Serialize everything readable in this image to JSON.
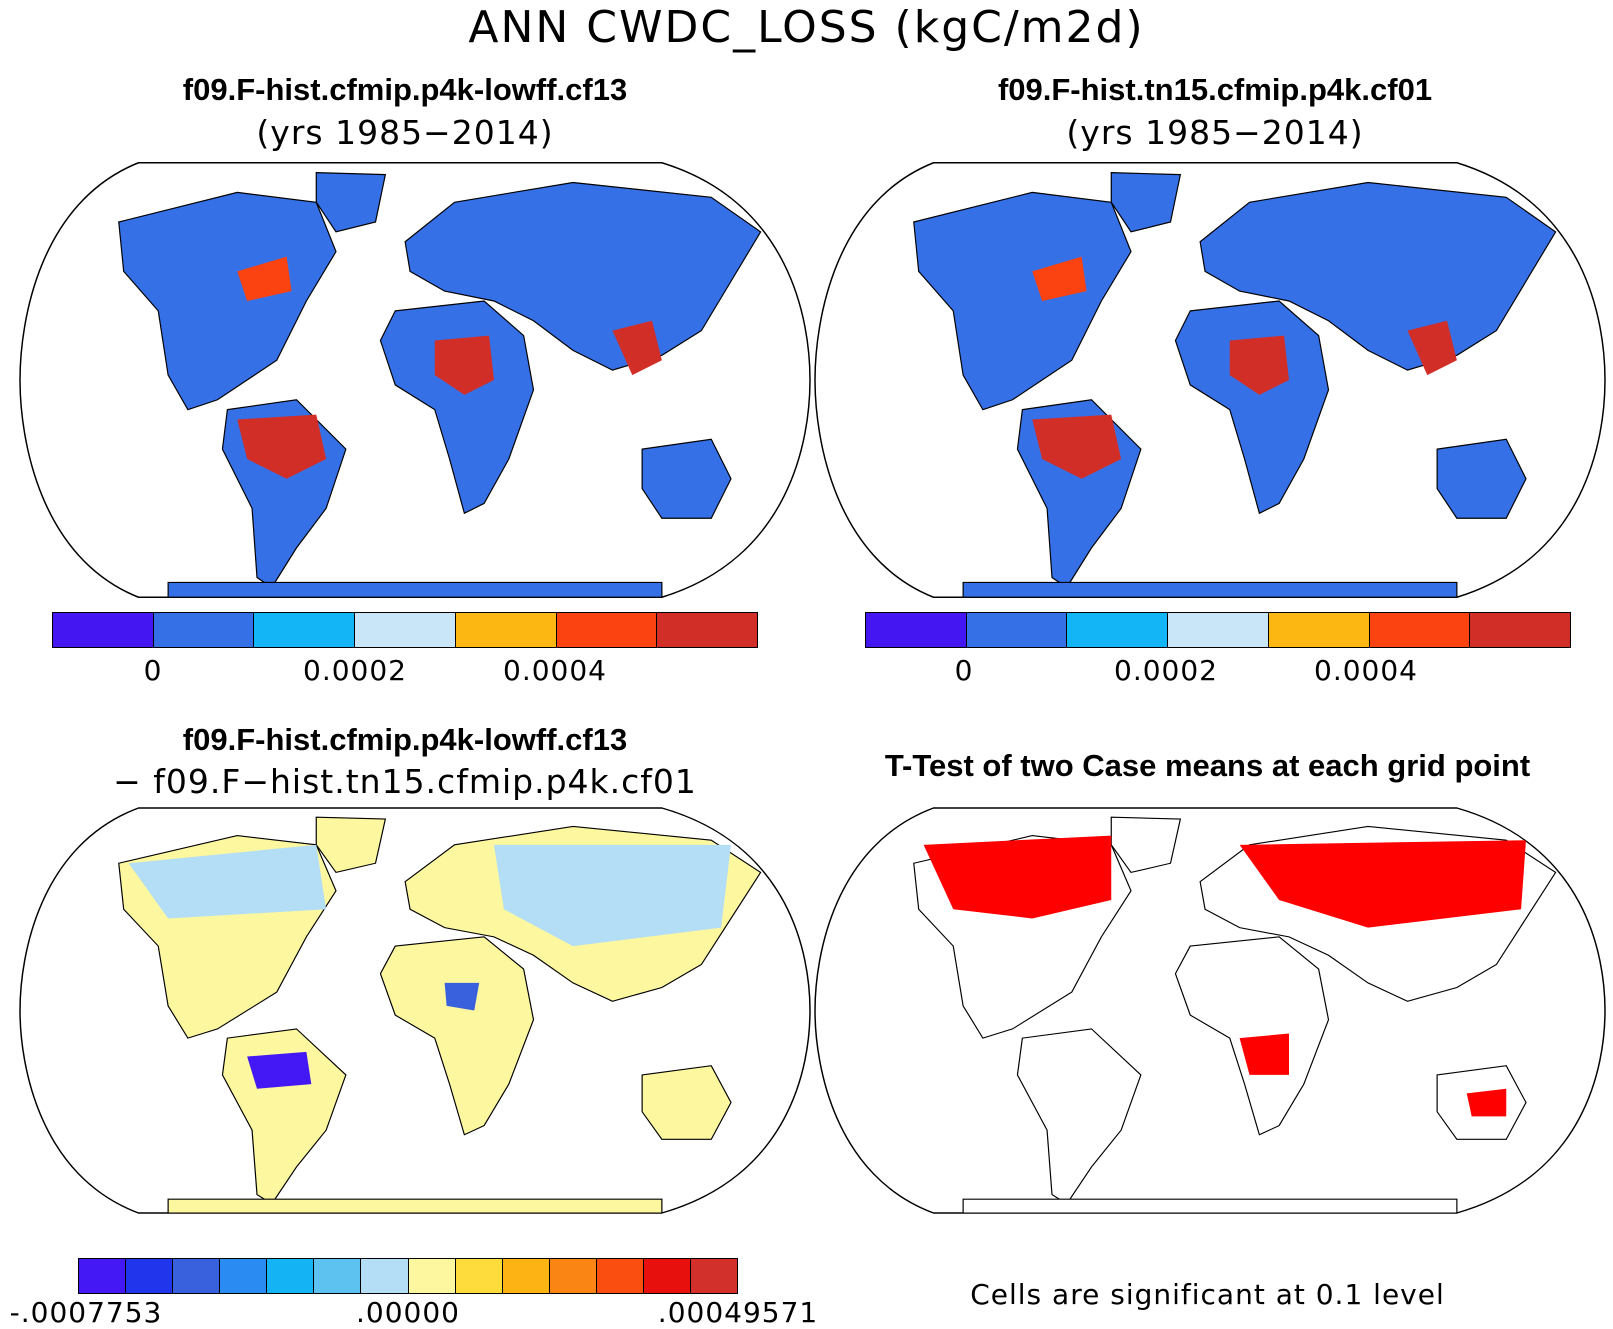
{
  "title": "ANN CWDC_LOSS (kgC/m2d)",
  "panels": {
    "case1": {
      "title": "f09.F-hist.cfmip.p4k-lowff.cf13",
      "subtitle": "(yrs 1985−2014)"
    },
    "case2": {
      "title": "f09.F-hist.tn15.cfmip.p4k.cf01",
      "subtitle": "(yrs 1985−2014)"
    },
    "diff": {
      "title": "f09.F-hist.cfmip.p4k-lowff.cf13",
      "subtitle": "− f09.F−hist.tn15.cfmip.p4k.cf01"
    },
    "ttest": {
      "title": "T-Test of two Case means at each grid point",
      "note": "Cells are significant at 0.1 level"
    }
  },
  "colorbar_main": {
    "colors": [
      "#4416f2",
      "#3570e6",
      "#13b5f6",
      "#c8e6f8",
      "#fdb713",
      "#fa4310",
      "#d22e28"
    ],
    "ticks": [
      "0",
      "0.0002",
      "0.0004"
    ]
  },
  "colorbar_diff": {
    "colors": [
      "#4418f5",
      "#2136ec",
      "#3a61dd",
      "#2a8bf2",
      "#13b3f4",
      "#5ec2f0",
      "#b3def5",
      "#fdf7a0",
      "#fddc3b",
      "#fdb314",
      "#fa8514",
      "#fa4e10",
      "#e8100d",
      "#d2302b"
    ],
    "ticks": [
      "-.0007753",
      ".00000",
      ".00049571"
    ]
  },
  "colors": {
    "land_base": "#3570e6",
    "tropics": "#d22e28",
    "diff_base": "#fdf7a0",
    "diff_cool": "#b3def5",
    "significant": "#ff0000",
    "outline": "#000000"
  }
}
